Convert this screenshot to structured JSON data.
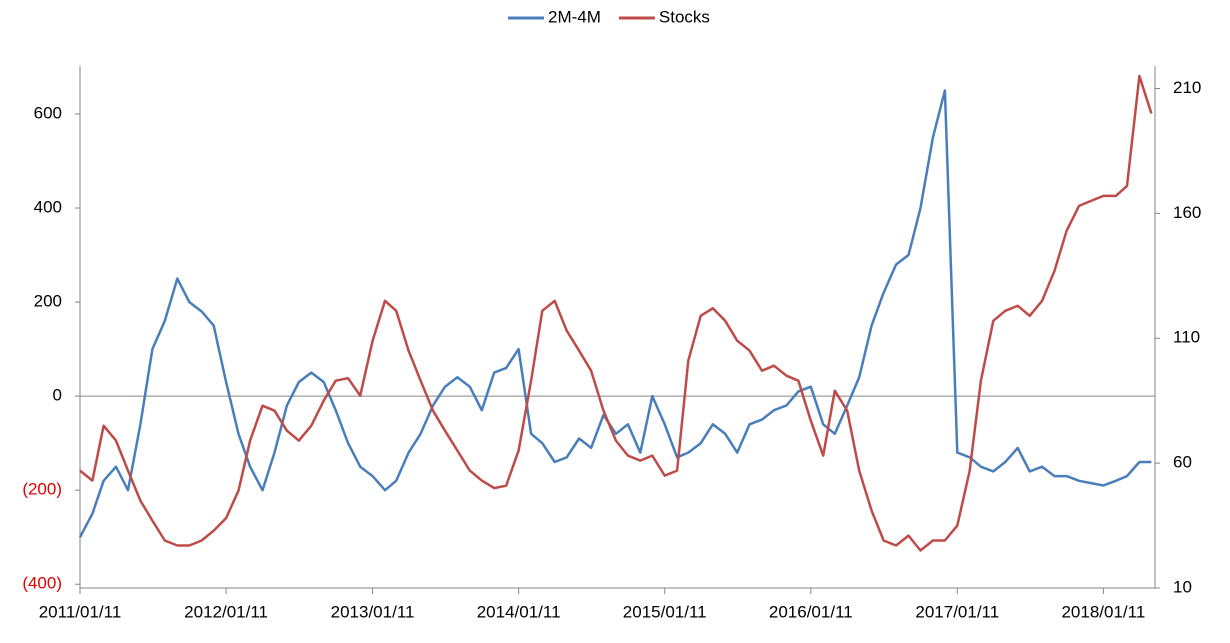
{
  "chart_data": {
    "type": "line",
    "x": [
      "2011/01/11",
      "2011/02/11",
      "2011/03/11",
      "2011/04/11",
      "2011/05/11",
      "2011/06/11",
      "2011/07/11",
      "2011/08/11",
      "2011/09/11",
      "2011/10/11",
      "2011/11/11",
      "2011/12/11",
      "2012/01/11",
      "2012/02/11",
      "2012/03/11",
      "2012/04/11",
      "2012/05/11",
      "2012/06/11",
      "2012/07/11",
      "2012/08/11",
      "2012/09/11",
      "2012/10/11",
      "2012/11/11",
      "2012/12/11",
      "2013/01/11",
      "2013/02/11",
      "2013/03/11",
      "2013/04/11",
      "2013/05/11",
      "2013/06/11",
      "2013/07/11",
      "2013/08/11",
      "2013/09/11",
      "2013/10/11",
      "2013/11/11",
      "2013/12/11",
      "2014/01/11",
      "2014/02/11",
      "2014/03/11",
      "2014/04/11",
      "2014/05/11",
      "2014/06/11",
      "2014/07/11",
      "2014/08/11",
      "2014/09/11",
      "2014/10/11",
      "2014/11/11",
      "2014/12/11",
      "2015/01/11",
      "2015/02/11",
      "2015/03/11",
      "2015/04/11",
      "2015/05/11",
      "2015/06/11",
      "2015/07/11",
      "2015/08/11",
      "2015/09/11",
      "2015/10/11",
      "2015/11/11",
      "2015/12/11",
      "2016/01/11",
      "2016/02/11",
      "2016/03/11",
      "2016/04/11",
      "2016/05/11",
      "2016/06/11",
      "2016/07/11",
      "2016/08/11",
      "2016/09/11",
      "2016/10/11",
      "2016/11/11",
      "2016/12/11",
      "2017/01/11",
      "2017/02/11",
      "2017/03/11",
      "2017/04/11",
      "2017/05/11",
      "2017/06/11",
      "2017/07/11",
      "2017/08/11",
      "2017/09/11",
      "2017/10/11",
      "2017/11/11",
      "2017/12/11",
      "2018/01/11",
      "2018/02/11",
      "2018/03/11",
      "2018/04/11",
      "2018/05/11"
    ],
    "series": [
      {
        "name": "2M-4M",
        "color": "#4a7ebb",
        "values": [
          -300,
          -250,
          -180,
          -150,
          -200,
          -60,
          100,
          160,
          250,
          200,
          180,
          150,
          30,
          -80,
          -150,
          -200,
          -120,
          -20,
          30,
          50,
          30,
          -30,
          -100,
          -150,
          -170,
          -200,
          -180,
          -120,
          -80,
          -20,
          20,
          40,
          20,
          -30,
          50,
          60,
          100,
          -80,
          -100,
          -140,
          -130,
          -90,
          -110,
          -40,
          -80,
          -60,
          -120,
          0,
          -60,
          -130,
          -120,
          -100,
          -60,
          -80,
          -120,
          -60,
          -50,
          -30,
          -20,
          10,
          20,
          -60,
          -80,
          -20,
          40,
          150,
          220,
          280,
          300,
          400,
          550,
          650,
          -120,
          -130,
          -150,
          -160,
          -140,
          -110,
          -160,
          -150,
          -170,
          -170,
          -180,
          -185,
          -190,
          -180,
          -170,
          -140,
          -140
        ]
      },
      {
        "name": "Stocks",
        "color": "#be4b48",
        "axis": "y2",
        "values": [
          57,
          53,
          75,
          69,
          57,
          45,
          37,
          29,
          27,
          27,
          29,
          33,
          38,
          49,
          69,
          83,
          81,
          73,
          69,
          75,
          85,
          93,
          94,
          87,
          109,
          125,
          121,
          105,
          93,
          81,
          73,
          65,
          57,
          53,
          50,
          51,
          65,
          93,
          121,
          125,
          113,
          105,
          97,
          81,
          69,
          63,
          61,
          63,
          55,
          57,
          101,
          119,
          122,
          117,
          109,
          105,
          97,
          99,
          95,
          93,
          77,
          63,
          89,
          81,
          57,
          41,
          29,
          27,
          31,
          25,
          29,
          29,
          35,
          57,
          93,
          117,
          121,
          123,
          119,
          125,
          137,
          153,
          163,
          165,
          167,
          167,
          171,
          215,
          200
        ]
      }
    ],
    "xlim": [
      "2011/01/11",
      "2018/05/20"
    ],
    "xticks": [
      "2011/01/11",
      "2012/01/11",
      "2013/01/11",
      "2014/01/11",
      "2015/01/11",
      "2016/01/11",
      "2017/01/11",
      "2018/01/11"
    ],
    "ylim": [
      -408,
      702
    ],
    "yticks": [
      {
        "value": -400,
        "label": "(400)"
      },
      {
        "value": -200,
        "label": "(200)"
      },
      0,
      200,
      400,
      600
    ],
    "negative_tick_color": "#e00000",
    "y2lim": [
      10,
      219
    ],
    "y2ticks": [
      10,
      60,
      110,
      160,
      210
    ],
    "zero_line": true,
    "legend": "top"
  }
}
